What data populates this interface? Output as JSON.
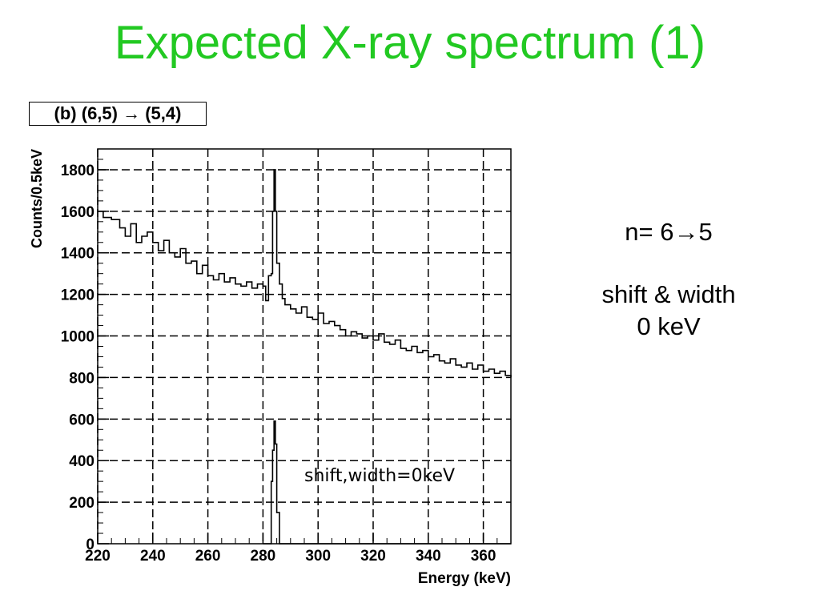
{
  "slide": {
    "title": "Expected X-ray spectrum (1)",
    "panel_label": "(b) (6,5) → (5,4)"
  },
  "notes": {
    "transition_prefix": "n= 6",
    "transition_arrow": "→",
    "transition_suffix": "5",
    "line2": "shift & width",
    "line3": "0 keV"
  },
  "chart_data": {
    "type": "line",
    "xlabel": "Energy (keV)",
    "ylabel": "Counts/0.5keV",
    "xlim": [
      220,
      370
    ],
    "ylim": [
      0,
      1900
    ],
    "xticks": [
      220,
      240,
      260,
      280,
      300,
      320,
      340,
      360
    ],
    "yticks": [
      0,
      200,
      400,
      600,
      800,
      1000,
      1200,
      1400,
      1600,
      1800
    ],
    "grid": true,
    "annotation": "shift,width=0keV",
    "series": [
      {
        "style": "histogram",
        "x": [
          220,
          222,
          225,
          228,
          230,
          232,
          234,
          236,
          238,
          240,
          242,
          244,
          246,
          248,
          250,
          252,
          254,
          256,
          258,
          260,
          262,
          264,
          266,
          268,
          270,
          272,
          274,
          276,
          278,
          280,
          281,
          282,
          283,
          283.5,
          284,
          284.5,
          285,
          286,
          287,
          288,
          290,
          292,
          294,
          296,
          298,
          300,
          302,
          304,
          306,
          308,
          310,
          312,
          314,
          316,
          318,
          320,
          322,
          324,
          326,
          328,
          330,
          332,
          334,
          336,
          338,
          340,
          342,
          344,
          346,
          348,
          350,
          352,
          354,
          356,
          358,
          360,
          362,
          364,
          366,
          368,
          370
        ],
        "values": [
          1600,
          1570,
          1560,
          1520,
          1480,
          1540,
          1450,
          1480,
          1500,
          1450,
          1410,
          1460,
          1400,
          1380,
          1420,
          1350,
          1360,
          1300,
          1340,
          1290,
          1270,
          1300,
          1260,
          1280,
          1250,
          1240,
          1260,
          1230,
          1250,
          1240,
          1170,
          1290,
          1300,
          1600,
          1800,
          1600,
          1350,
          1250,
          1180,
          1150,
          1130,
          1110,
          1140,
          1090,
          1080,
          1110,
          1060,
          1070,
          1050,
          1030,
          1000,
          1020,
          1010,
          990,
          1000,
          980,
          1010,
          970,
          960,
          980,
          940,
          930,
          950,
          920,
          930,
          900,
          910,
          880,
          870,
          890,
          860,
          850,
          870,
          840,
          860,
          830,
          840,
          820,
          830,
          810,
          800
        ]
      },
      {
        "style": "histogram",
        "x": [
          280,
          281,
          282,
          283,
          283.5,
          284,
          284.5,
          285,
          286,
          287,
          370
        ],
        "values": [
          0,
          0,
          0,
          300,
          450,
          590,
          480,
          150,
          0,
          0,
          0
        ]
      }
    ]
  }
}
